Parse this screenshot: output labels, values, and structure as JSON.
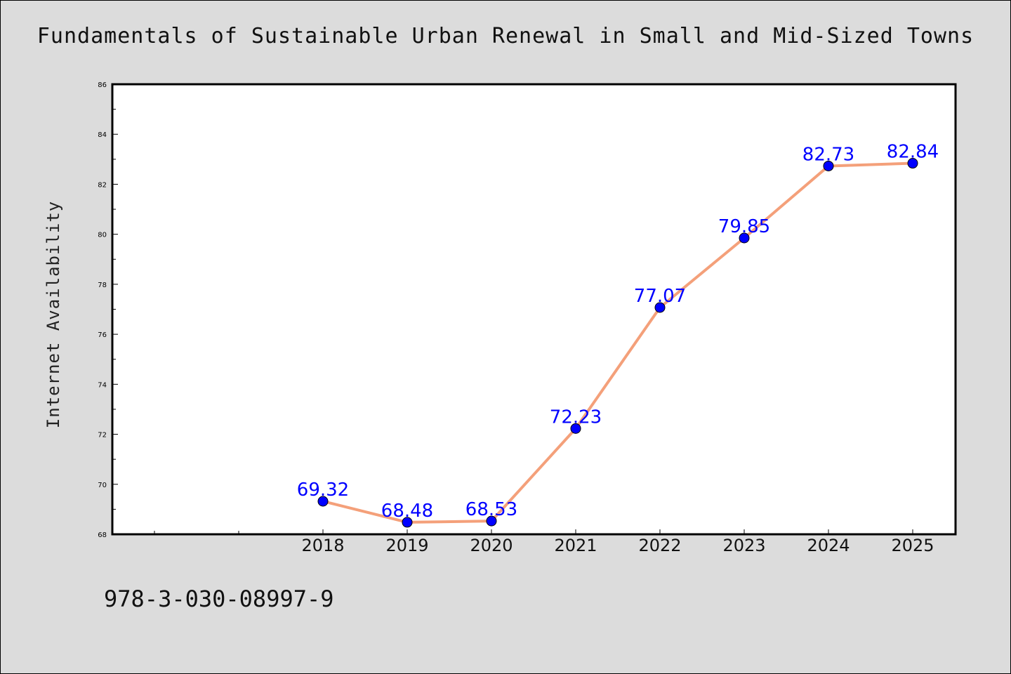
{
  "chart_data": {
    "type": "line",
    "title": "Fundamentals of Sustainable Urban Renewal in Small and Mid-Sized Towns",
    "xlabel": "",
    "ylabel": "Internet Availability",
    "categories": [
      "2018",
      "2019",
      "2020",
      "2021",
      "2022",
      "2023",
      "2024",
      "2025"
    ],
    "series": [
      {
        "values": [
          69.32,
          68.48,
          68.53,
          72.23,
          77.07,
          79.85,
          82.73,
          82.84
        ],
        "labels": [
          "69.32",
          "68.48",
          "68.53",
          "72.23",
          "77.07",
          "79.85",
          "82.73",
          "82.84"
        ]
      }
    ],
    "ylim": [
      68,
      86
    ],
    "yticks": [
      "68",
      "70",
      "72",
      "74",
      "76",
      "78",
      "80",
      "82",
      "84",
      "86"
    ],
    "grid": false,
    "legend": "none"
  },
  "footer": {
    "isbn": "978-3-030-08997-9"
  },
  "colors": {
    "background": "#dcdcdc",
    "plot_background": "#ffffff",
    "line": "#f4a07a",
    "marker": "#0000ff",
    "data_label": "#0000ff"
  }
}
